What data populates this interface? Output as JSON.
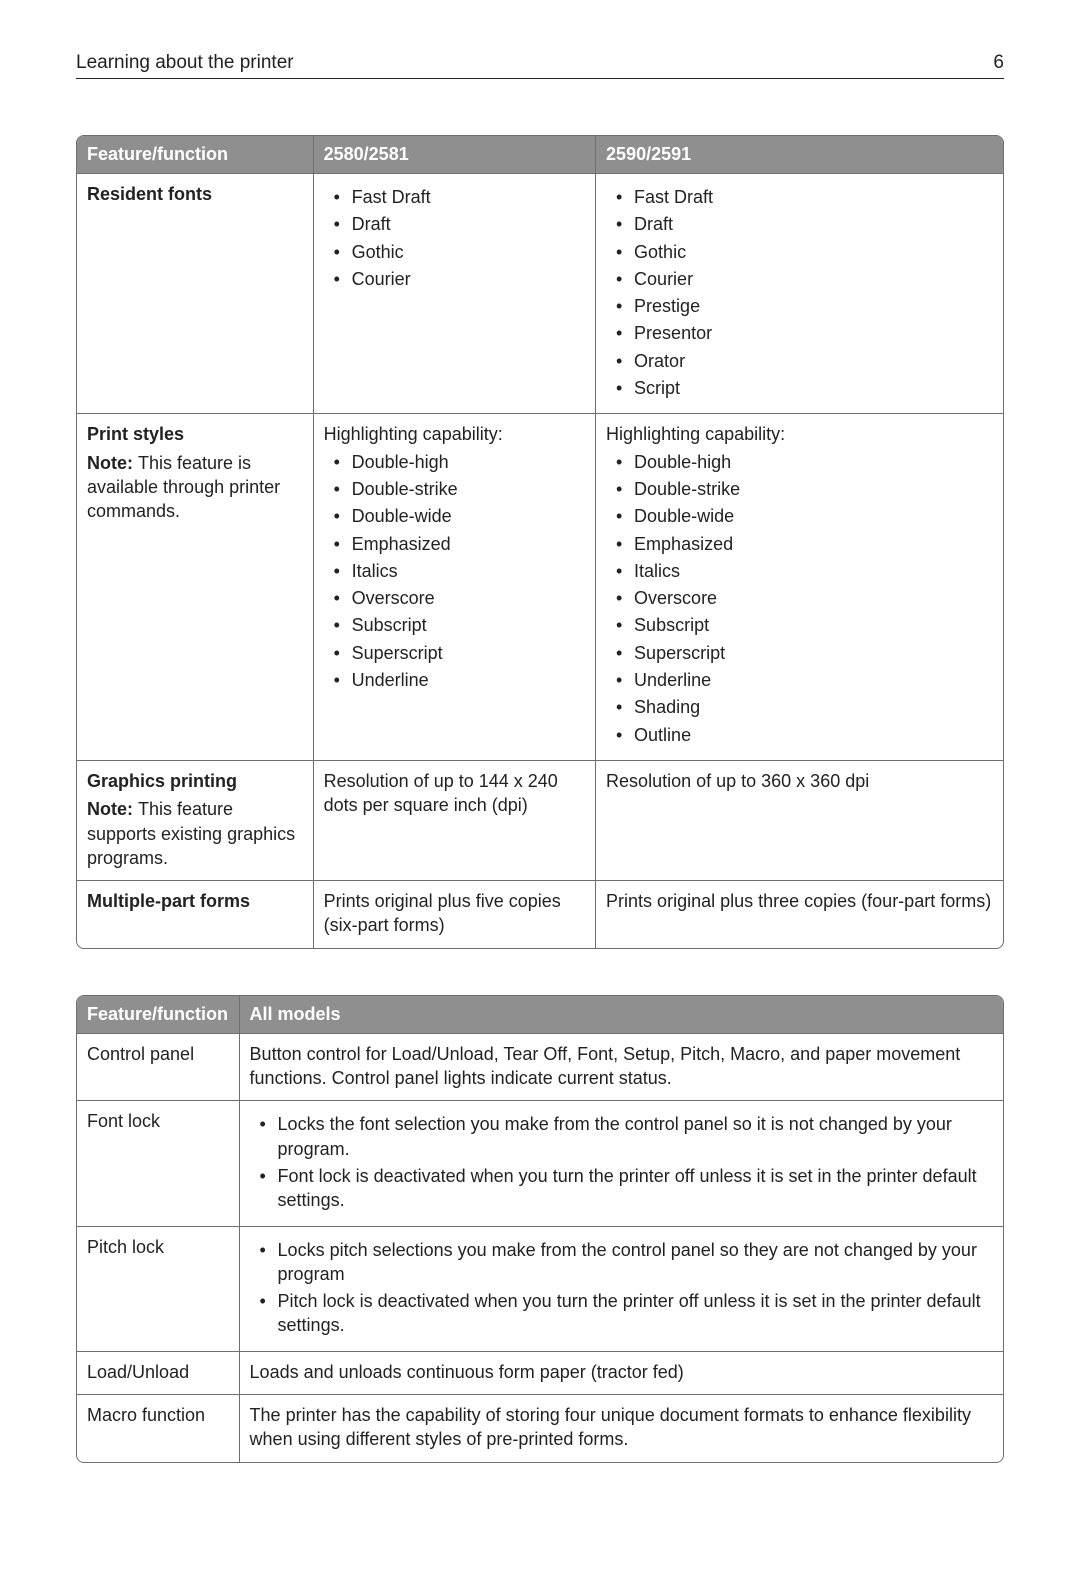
{
  "header": {
    "title": "Learning about the printer",
    "page_number": "6"
  },
  "table1": {
    "columns": [
      "Feature/function",
      "2580/2581",
      "2590/2591"
    ],
    "col_widths_pct": [
      25.5,
      30.5,
      44
    ],
    "header_bg": "#8f8f8f",
    "header_fg": "#ffffff",
    "border_color": "#6f6f6f",
    "rows": [
      {
        "title": "Resident fonts",
        "note": null,
        "col2": {
          "lead": null,
          "bullets": [
            "Fast Draft",
            "Draft",
            "Gothic",
            "Courier"
          ]
        },
        "col3": {
          "lead": null,
          "bullets": [
            "Fast Draft",
            "Draft",
            "Gothic",
            "Courier",
            "Prestige",
            "Presentor",
            "Orator",
            "Script"
          ]
        }
      },
      {
        "title": "Print styles",
        "note": "This feature is available through printer commands.",
        "col2": {
          "lead": "Highlighting capability:",
          "bullets": [
            "Double-high",
            "Double-strike",
            "Double-wide",
            "Emphasized",
            "Italics",
            "Overscore",
            "Subscript",
            "Superscript",
            "Underline"
          ]
        },
        "col3": {
          "lead": "Highlighting capability:",
          "bullets": [
            "Double-high",
            "Double-strike",
            "Double-wide",
            "Emphasized",
            "Italics",
            "Overscore",
            "Subscript",
            "Superscript",
            "Underline",
            "Shading",
            "Outline"
          ]
        }
      },
      {
        "title": "Graphics printing",
        "note": "This feature supports existing graphics programs.",
        "col2": {
          "text": "Resolution of up to 144 x 240 dots per square inch (dpi)"
        },
        "col3": {
          "text": "Resolution of up to 360 x 360 dpi"
        }
      },
      {
        "title": "Multiple-part forms",
        "note": null,
        "col2": {
          "text": "Prints original plus five copies (six-part forms)"
        },
        "col3": {
          "text": "Prints original plus three copies (four-part forms)"
        }
      }
    ]
  },
  "table2": {
    "columns": [
      "Feature/function",
      "All models"
    ],
    "col_widths_pct": [
      17.5,
      82.5
    ],
    "header_bg": "#8f8f8f",
    "header_fg": "#ffffff",
    "border_color": "#6f6f6f",
    "rows": [
      {
        "title": "Control panel",
        "col2": {
          "text": "Button control for Load/Unload, Tear Off, Font, Setup, Pitch, Macro, and paper movement functions. Control panel lights indicate current status."
        }
      },
      {
        "title": "Font lock",
        "col2": {
          "bullets": [
            "Locks the font selection you make from the control panel so it is not changed by your program.",
            "Font lock is deactivated when you turn the printer off unless it is set in the printer default settings."
          ]
        }
      },
      {
        "title": "Pitch lock",
        "col2": {
          "bullets": [
            "Locks pitch selections you make from the control panel so they are not changed by your program",
            "Pitch lock is deactivated when you turn the printer off unless it is set in the printer default settings."
          ]
        }
      },
      {
        "title": "Load/Unload",
        "col2": {
          "text": "Loads and unloads continuous form paper (tractor fed)"
        }
      },
      {
        "title": "Macro function",
        "col2": {
          "text": "The printer has the capability of storing four unique document formats to enhance flexibility when using different styles of pre-printed forms."
        }
      }
    ]
  },
  "labels": {
    "note_prefix": "Note:"
  }
}
